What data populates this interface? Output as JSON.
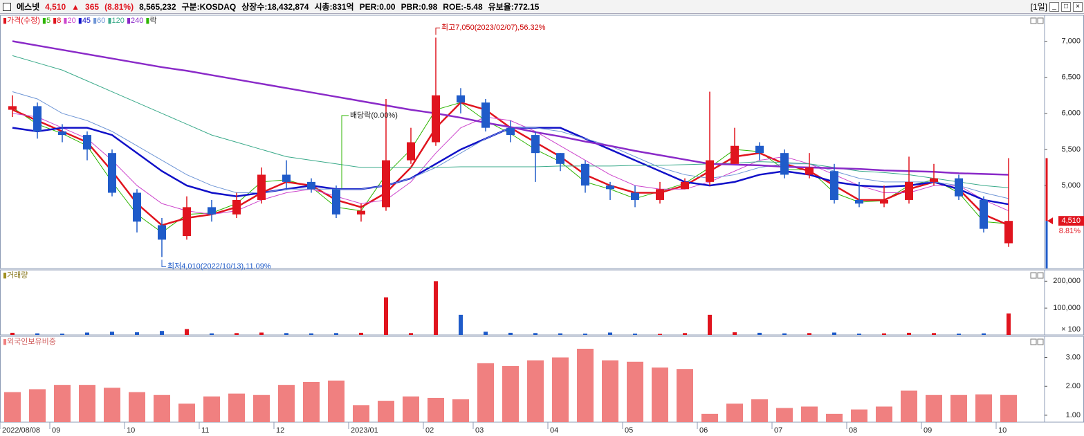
{
  "header": {
    "name": "에스넷",
    "price": "4,510",
    "arrow": "▲",
    "change": "365",
    "change_rate": "(8.81%)",
    "volume": "8,565,232",
    "market": "구분:KOSDAQ",
    "shares": "상장수:18,432,874",
    "cap": "시총:831억",
    "per": "PER:0.00",
    "pbr": "PBR:0.98",
    "roe": "ROE:-5.48",
    "reserve": "유보율:772.15",
    "period": "[1일]"
  },
  "chart_data": [
    {
      "type": "candlestick",
      "name": "가격(수정)",
      "lock_label": "락",
      "up_color": "#e0141e",
      "down_color": "#1f5bc9",
      "categories": [
        "2022/08/08",
        null,
        "09",
        null,
        null,
        "10",
        null,
        null,
        "11",
        null,
        null,
        "12",
        null,
        null,
        "2023/01",
        null,
        null,
        "02",
        null,
        "03",
        null,
        null,
        "04",
        null,
        null,
        "05",
        null,
        null,
        "06",
        null,
        null,
        "07",
        null,
        null,
        "08",
        null,
        null,
        "09",
        null,
        null,
        "10"
      ],
      "open": [
        6050,
        6100,
        5750,
        5700,
        5450,
        4900,
        4450,
        4300,
        4700,
        4600,
        4800,
        5150,
        5050,
        4950,
        4600,
        4700,
        5350,
        5600,
        6250,
        6150,
        5800,
        5700,
        5450,
        5300,
        5000,
        4900,
        4800,
        4950,
        5050,
        5300,
        5550,
        5450,
        5150,
        5200,
        4800,
        4750,
        4800,
        5050,
        5100,
        4800,
        4200
      ],
      "high": [
        6250,
        6150,
        5850,
        5750,
        5500,
        4950,
        4550,
        4850,
        4800,
        4900,
        5250,
        5350,
        5100,
        5000,
        4750,
        6200,
        5800,
        7050,
        6350,
        6200,
        5900,
        5750,
        5450,
        5350,
        5050,
        5000,
        5050,
        5100,
        6300,
        5800,
        5600,
        5500,
        5450,
        5300,
        5050,
        5000,
        5400,
        5300,
        5150,
        4850,
        5380
      ],
      "low": [
        5950,
        5650,
        5600,
        5350,
        4850,
        4350,
        4010,
        4250,
        4500,
        4550,
        4750,
        4950,
        4900,
        4550,
        4500,
        4650,
        5300,
        5550,
        6000,
        5750,
        5600,
        5050,
        5200,
        4900,
        4800,
        4700,
        4750,
        4950,
        5000,
        5300,
        5350,
        5100,
        5100,
        4750,
        4700,
        4700,
        4750,
        5000,
        4800,
        4350,
        4150
      ],
      "close": [
        6100,
        5750,
        5700,
        5500,
        4900,
        4500,
        4250,
        4700,
        4600,
        4800,
        5150,
        5050,
        4950,
        4600,
        4650,
        5350,
        5600,
        6250,
        6150,
        5800,
        5700,
        5450,
        5300,
        5000,
        4950,
        4800,
        4950,
        5050,
        5350,
        5550,
        5450,
        5150,
        5250,
        4800,
        4750,
        4800,
        5050,
        5100,
        4850,
        4400,
        4510
      ],
      "series": [
        {
          "name": "5",
          "color": "#2db400",
          "width": 1,
          "values": [
            6080,
            5850,
            5720,
            5550,
            5050,
            4600,
            4350,
            4600,
            4620,
            4750,
            5050,
            5080,
            4980,
            4700,
            4650,
            5150,
            5500,
            6050,
            6150,
            5900,
            5720,
            5500,
            5330,
            5050,
            4950,
            4820,
            4920,
            5030,
            5250,
            5500,
            5470,
            5220,
            5220,
            4900,
            4770,
            4790,
            5000,
            5080,
            4900,
            4500,
            4470
          ]
        },
        {
          "name": "8",
          "color": "#e0141e",
          "width": 2.5,
          "values": [
            6050,
            5900,
            5750,
            5600,
            5200,
            4750,
            4450,
            4550,
            4600,
            4700,
            4900,
            5050,
            5000,
            4800,
            4700,
            4900,
            5250,
            5800,
            6150,
            6050,
            5800,
            5600,
            5400,
            5150,
            5000,
            4900,
            4900,
            5000,
            5200,
            5400,
            5450,
            5300,
            5200,
            5000,
            4800,
            4800,
            4950,
            5050,
            4950,
            4600,
            4450
          ]
        },
        {
          "name": "20",
          "color": "#cc44cc",
          "width": 1,
          "values": [
            6000,
            5950,
            5800,
            5650,
            5350,
            5000,
            4750,
            4650,
            4600,
            4650,
            4800,
            4900,
            4950,
            4850,
            4750,
            4800,
            5050,
            5450,
            5800,
            5950,
            5900,
            5750,
            5550,
            5350,
            5150,
            5000,
            4950,
            4950,
            5050,
            5200,
            5350,
            5400,
            5300,
            5150,
            5000,
            4900,
            4900,
            5000,
            5000,
            4800,
            4650
          ]
        },
        {
          "name": "45",
          "color": "#1010c8",
          "width": 2.5,
          "values": [
            5800,
            5750,
            5800,
            5800,
            5700,
            5450,
            5200,
            5000,
            4900,
            4850,
            4900,
            4950,
            5000,
            4950,
            4950,
            5000,
            5100,
            5300,
            5500,
            5650,
            5800,
            5800,
            5800,
            5650,
            5500,
            5350,
            5200,
            5050,
            5000,
            5050,
            5150,
            5200,
            5150,
            5050,
            5000,
            4980,
            5000,
            5050,
            4950,
            4800,
            4740
          ]
        },
        {
          "name": "60",
          "color": "#6f96d6",
          "width": 1,
          "values": [
            6300,
            6200,
            6000,
            5900,
            5750,
            5550,
            5350,
            5150,
            5000,
            4900,
            4900,
            4950,
            4950,
            4950,
            4950,
            5000,
            5100,
            5250,
            5450,
            5650,
            5800,
            5800,
            5750,
            5650,
            5550,
            5400,
            5250,
            5150,
            5100,
            5150,
            5250,
            5300,
            5300,
            5200,
            5100,
            5050,
            5050,
            5050,
            5000,
            4900,
            4820
          ]
        },
        {
          "name": "120",
          "color": "#3aaa8a",
          "width": 1,
          "values": [
            6800,
            6700,
            6600,
            6450,
            6300,
            6150,
            6000,
            5850,
            5700,
            5600,
            5500,
            5400,
            5350,
            5300,
            5250,
            5250,
            5250,
            5250,
            5260,
            5260,
            5260,
            5260,
            5270,
            5270,
            5270,
            5280,
            5280,
            5290,
            5300,
            5310,
            5330,
            5320,
            5300,
            5250,
            5200,
            5180,
            5150,
            5100,
            5050,
            5000,
            4970
          ]
        },
        {
          "name": "240",
          "color": "#8a2ac8",
          "width": 2.5,
          "values": [
            7000,
            6940,
            6880,
            6820,
            6760,
            6700,
            6640,
            6590,
            6530,
            6470,
            6410,
            6350,
            6290,
            6230,
            6170,
            6110,
            6050,
            6000,
            5940,
            5870,
            5810,
            5740,
            5680,
            5610,
            5550,
            5480,
            5420,
            5360,
            5300,
            5290,
            5280,
            5260,
            5250,
            5240,
            5230,
            5210,
            5200,
            5190,
            5170,
            5160,
            5150
          ]
        }
      ],
      "ylim": [
        3850,
        7360
      ],
      "yticks": [
        {
          "value": 5000,
          "label": "5,000"
        },
        {
          "value": 5500,
          "label": "5,500"
        },
        {
          "value": 6000,
          "label": "6,000"
        },
        {
          "value": 6500,
          "label": "6,500"
        },
        {
          "value": 7000,
          "label": "7,000"
        }
      ],
      "annotations": {
        "high": "최고7,050(2023/02/07),56.32%",
        "low": "최저4,010(2022/10/13),11.09%",
        "dividend": "배당락(0.00%)"
      },
      "price_tag": {
        "price": "4,510",
        "change": "8.81%"
      }
    },
    {
      "type": "bar",
      "title": "거래량",
      "unit_label": "× 100",
      "values": [
        8000,
        6000,
        5000,
        9000,
        12000,
        10000,
        15000,
        22000,
        6000,
        7000,
        9000,
        7000,
        6000,
        7000,
        8000,
        140000,
        7000,
        200000,
        75000,
        12000,
        8000,
        7000,
        6000,
        5000,
        9000,
        5000,
        4000,
        7000,
        75000,
        10000,
        8000,
        6000,
        7000,
        9000,
        5000,
        6000,
        8000,
        7000,
        5000,
        6000,
        80000
      ],
      "ylim": [
        0,
        242000
      ],
      "yticks": [
        {
          "value": 100000,
          "label": "100,000"
        },
        {
          "value": 200000,
          "label": "200,000"
        }
      ]
    },
    {
      "type": "bar",
      "title": "외국인보유비중",
      "color": "#f08080",
      "values": [
        1.8,
        1.9,
        2.05,
        2.05,
        1.95,
        1.8,
        1.7,
        1.4,
        1.65,
        1.75,
        1.7,
        2.05,
        2.15,
        2.2,
        1.35,
        1.5,
        1.65,
        1.6,
        1.55,
        2.8,
        2.7,
        2.9,
        3.0,
        3.3,
        2.9,
        2.85,
        2.65,
        2.6,
        1.05,
        1.4,
        1.55,
        1.25,
        1.3,
        1.05,
        1.2,
        1.3,
        1.85,
        1.7,
        1.7,
        1.72,
        1.7
      ],
      "ylim": [
        0.76,
        3.73
      ],
      "yticks": [
        {
          "value": 1,
          "label": "1.00"
        },
        {
          "value": 2,
          "label": "2.00"
        },
        {
          "value": 3,
          "label": "3.00"
        }
      ]
    }
  ]
}
